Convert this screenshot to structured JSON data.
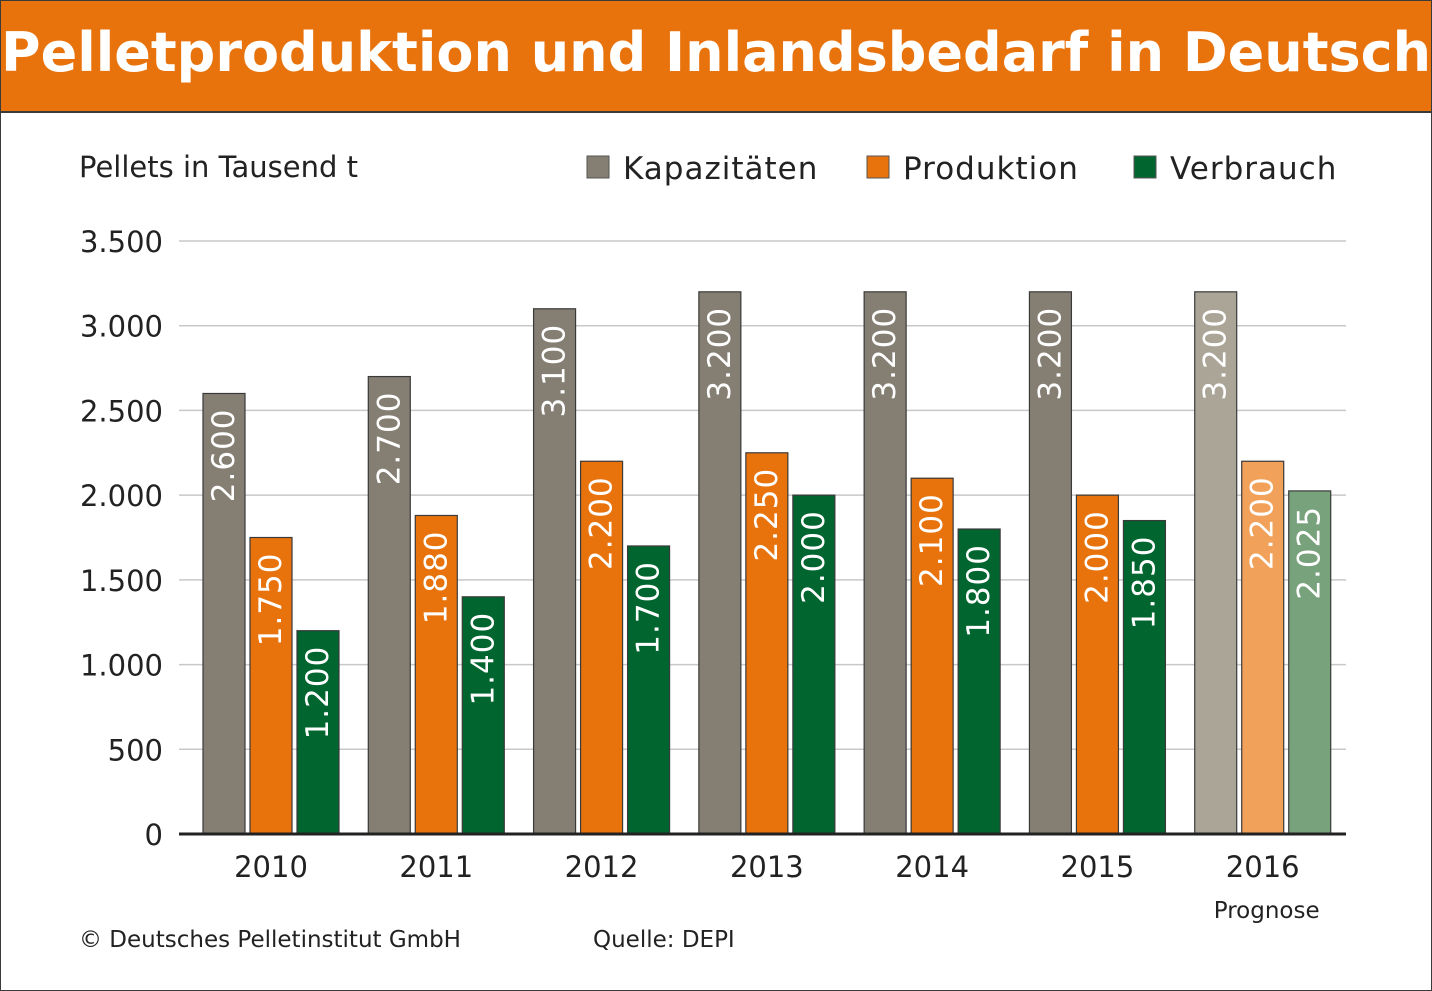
{
  "title": "Pelletproduktion und Inlandsbedarf in Deutschland",
  "footer": {
    "copyright": "© Deutsches Pelletinstitut GmbH",
    "source": "Quelle: DEPI"
  },
  "colors": {
    "title_bar": "#e8730d",
    "kapazitaeten": "#857f73",
    "produktion": "#e8730d",
    "verbrauch": "#00652e",
    "kapazitaeten_forecast": "#aba597",
    "produktion_forecast": "#f1a15a",
    "verbrauch_forecast": "#78a27c"
  },
  "chart_data": {
    "type": "bar",
    "title": "Pelletproduktion und Inlandsbedarf in Deutschland",
    "ylabel": "Pellets in Tausend t",
    "xlabel": "",
    "ylim": [
      0,
      3500
    ],
    "yticks": [
      0,
      500,
      1000,
      1500,
      2000,
      2500,
      3000,
      3500
    ],
    "ytick_labels": [
      "0",
      "500",
      "1.000",
      "1.500",
      "2.000",
      "2.500",
      "3.000",
      "3.500"
    ],
    "grid": true,
    "legend_position": "top-right",
    "categories": [
      "2010",
      "2011",
      "2012",
      "2013",
      "2014",
      "2015",
      "2016"
    ],
    "category_notes": [
      "",
      "",
      "",
      "",
      "",
      "",
      "Prognose"
    ],
    "series": [
      {
        "name": "Kapazitäten",
        "values": [
          2600,
          2700,
          3100,
          3200,
          3200,
          3200,
          3200
        ],
        "labels": [
          "2.600",
          "2.700",
          "3.100",
          "3.200",
          "3.200",
          "3.200",
          "3.200"
        ]
      },
      {
        "name": "Produktion",
        "values": [
          1750,
          1880,
          2200,
          2250,
          2100,
          2000,
          2200
        ],
        "labels": [
          "1.750",
          "1.880",
          "2.200",
          "2.250",
          "2.100",
          "2.000",
          "2.200"
        ]
      },
      {
        "name": "Verbrauch",
        "values": [
          1200,
          1400,
          1700,
          2000,
          1800,
          1850,
          2025
        ],
        "labels": [
          "1.200",
          "1.400",
          "1.700",
          "2.000",
          "1.800",
          "1.850",
          "2.025"
        ]
      }
    ]
  }
}
